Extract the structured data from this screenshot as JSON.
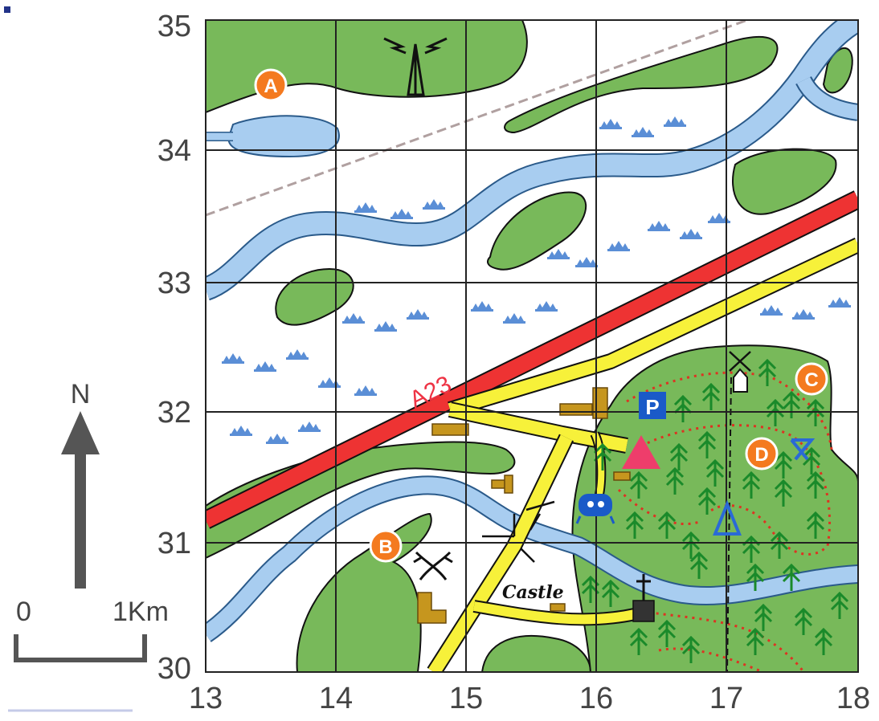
{
  "grid": {
    "x_labels": [
      "13",
      "14",
      "15",
      "16",
      "17",
      "18"
    ],
    "y_labels": [
      "35",
      "34",
      "33",
      "32",
      "31",
      "30"
    ]
  },
  "road_label": "A23",
  "markers": [
    {
      "id": "a",
      "letter": "A"
    },
    {
      "id": "b",
      "letter": "B"
    },
    {
      "id": "c",
      "letter": "C"
    },
    {
      "id": "d",
      "letter": "D"
    }
  ],
  "castle_label": "Castle",
  "parking_label": "P",
  "north_label": "N",
  "scale": {
    "start": "0",
    "end": "1Km"
  },
  "colors": {
    "woodland": "#78b95a",
    "water": "#a8cdf0",
    "river_edge": "#2a5a8a",
    "main_road": "#ee3333",
    "secondary_road": "#f7f13a",
    "marker": "#f47a1f",
    "tree": "#1a8a2a",
    "grid": "#222222",
    "marsh": "#5a8ed6",
    "path": "#dd3322",
    "camp": "#ee3d6b",
    "parking": "#1a5ac8",
    "building": "#c6961e"
  },
  "icons": [
    "radio-mast-icon",
    "windmill-icon",
    "camp-site-icon",
    "parking-icon",
    "picnic-site-icon",
    "viewpoint-icon",
    "church-icon",
    "battlefield-icon",
    "north-arrow-icon"
  ]
}
